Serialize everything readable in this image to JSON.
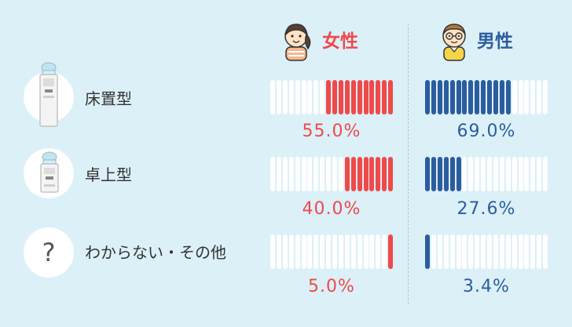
{
  "colors": {
    "female": "#ef4a4a",
    "male": "#2b5d9e",
    "bar_empty": "#ffffff",
    "background": "#dcf0f8"
  },
  "header": {
    "female_label": "女性",
    "male_label": "男性",
    "female_icon": "girl-avatar-icon",
    "male_icon": "boy-with-glasses-icon"
  },
  "bars_total": 20,
  "rows": [
    {
      "label": "床置型",
      "icon": "floor-water-server-icon",
      "female_pct": 55.0,
      "male_pct": 69.0,
      "female_text": "55.0%",
      "male_text": "69.0%"
    },
    {
      "label": "卓上型",
      "icon": "tabletop-water-server-icon",
      "female_pct": 40.0,
      "male_pct": 27.6,
      "female_text": "40.0%",
      "male_text": "27.6%"
    },
    {
      "label": "わからない・その他",
      "icon": "question-mark-icon",
      "female_pct": 5.0,
      "male_pct": 3.4,
      "female_text": "5.0%",
      "male_text": "3.4%"
    }
  ]
}
